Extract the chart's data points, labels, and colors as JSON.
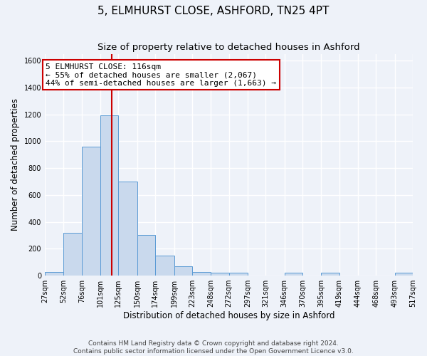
{
  "title": "5, ELMHURST CLOSE, ASHFORD, TN25 4PT",
  "subtitle": "Size of property relative to detached houses in Ashford",
  "xlabel": "Distribution of detached houses by size in Ashford",
  "ylabel": "Number of detached properties",
  "bin_edges": [
    27,
    52,
    76,
    101,
    125,
    150,
    174,
    199,
    223,
    248,
    272,
    297,
    321,
    346,
    370,
    395,
    419,
    444,
    468,
    493,
    517
  ],
  "bar_heights": [
    25,
    320,
    960,
    1190,
    700,
    300,
    150,
    70,
    25,
    20,
    20,
    0,
    0,
    20,
    0,
    20,
    0,
    0,
    0,
    20
  ],
  "bar_color": "#c9d9ed",
  "bar_edge_color": "#5b9bd5",
  "property_line_x": 116,
  "property_line_color": "#cc0000",
  "annotation_line1": "5 ELMHURST CLOSE: 116sqm",
  "annotation_line2": "← 55% of detached houses are smaller (2,067)",
  "annotation_line3": "44% of semi-detached houses are larger (1,663) →",
  "annotation_box_color": "#ffffff",
  "annotation_box_edge_color": "#cc0000",
  "ylim": [
    0,
    1650
  ],
  "yticks": [
    0,
    200,
    400,
    600,
    800,
    1000,
    1200,
    1400,
    1600
  ],
  "xtick_labels": [
    "27sqm",
    "52sqm",
    "76sqm",
    "101sqm",
    "125sqm",
    "150sqm",
    "174sqm",
    "199sqm",
    "223sqm",
    "248sqm",
    "272sqm",
    "297sqm",
    "321sqm",
    "346sqm",
    "370sqm",
    "395sqm",
    "419sqm",
    "444sqm",
    "468sqm",
    "493sqm",
    "517sqm"
  ],
  "footer_line1": "Contains HM Land Registry data © Crown copyright and database right 2024.",
  "footer_line2": "Contains public sector information licensed under the Open Government Licence v3.0.",
  "background_color": "#eef2f9",
  "grid_color": "#ffffff",
  "title_fontsize": 11,
  "subtitle_fontsize": 9.5,
  "axis_label_fontsize": 8.5,
  "tick_fontsize": 7,
  "annotation_fontsize": 8,
  "footer_fontsize": 6.5
}
